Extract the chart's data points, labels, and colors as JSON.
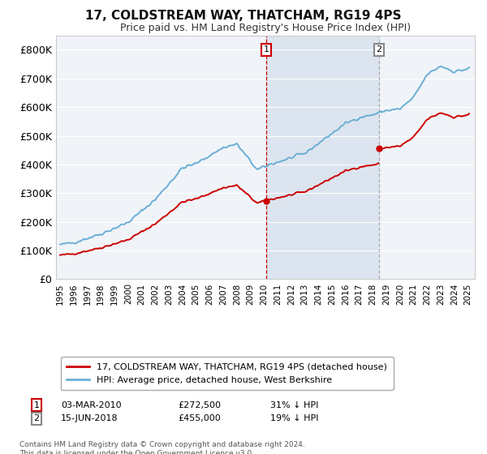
{
  "title": "17, COLDSTREAM WAY, THATCHAM, RG19 4PS",
  "subtitle": "Price paid vs. HM Land Registry's House Price Index (HPI)",
  "hpi_label": "HPI: Average price, detached house, West Berkshire",
  "property_label": "17, COLDSTREAM WAY, THATCHAM, RG19 4PS (detached house)",
  "footnote": "Contains HM Land Registry data © Crown copyright and database right 2024.\nThis data is licensed under the Open Government Licence v3.0.",
  "sale1_label": "03-MAR-2010",
  "sale1_price": "£272,500",
  "sale1_pct": "31% ↓ HPI",
  "sale1_date_x": 2010.167,
  "sale2_label": "15-JUN-2018",
  "sale2_price": "£455,000",
  "sale2_pct": "19% ↓ HPI",
  "sale2_date_x": 2018.458,
  "sale1_price_val": 272500,
  "sale2_price_val": 455000,
  "ylim": [
    0,
    850000
  ],
  "xlim_start": 1994.7,
  "xlim_end": 2025.5,
  "background_color": "#ffffff",
  "plot_bg_color": "#f0f4f8",
  "hpi_color": "#6baed6",
  "property_color": "#cc0000",
  "grid_color": "#ffffff",
  "sale_marker_color": "#cc0000",
  "highlight_box_color": "#cdd9e8",
  "vline1_color": "#cc0000",
  "vline2_color": "#aaaaaa"
}
